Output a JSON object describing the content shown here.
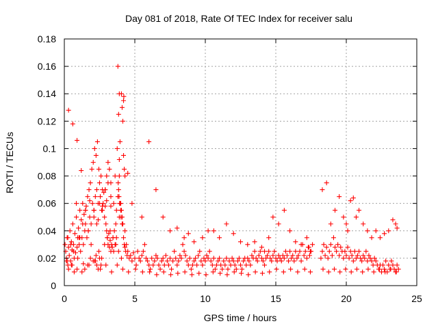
{
  "colors": {
    "marker": "#ff0000",
    "grid": "#a0a0a0",
    "axis": "#000000",
    "background": "#ffffff"
  },
  "chart_data": {
    "type": "scatter",
    "title": "Day 081 of 2018, Rate Of TEC Index for receiver salu",
    "xlabel": "GPS time / hours",
    "ylabel": "ROTI / TECUs",
    "xlim": [
      0,
      25
    ],
    "ylim": [
      0,
      0.18
    ],
    "xticks": [
      0,
      5,
      10,
      15,
      20,
      25
    ],
    "xtick_labels": [
      "0",
      "5",
      "10",
      "15",
      "20",
      "25"
    ],
    "yticks": [
      0,
      0.02,
      0.04,
      0.06,
      0.08,
      0.1,
      0.12,
      0.14,
      0.16,
      0.18
    ],
    "ytick_labels": [
      "0",
      "0.02",
      "0.04",
      "0.06",
      "0.08",
      "0.1",
      "0.12",
      "0.14",
      "0.16",
      "0.18"
    ],
    "grid": true,
    "marker": "+",
    "series": [
      {
        "name": "ROTI",
        "x": [
          0.05,
          0.1,
          0.15,
          0.2,
          0.25,
          0.3,
          0.35,
          0.4,
          0.45,
          0.5,
          0.55,
          0.6,
          0.65,
          0.7,
          0.75,
          0.8,
          0.85,
          0.9,
          0.95,
          1.0,
          1.05,
          1.1,
          1.15,
          1.2,
          1.25,
          1.3,
          1.35,
          1.4,
          1.45,
          1.5,
          1.55,
          1.6,
          1.65,
          1.7,
          1.75,
          1.8,
          1.85,
          1.9,
          1.95,
          2.0,
          2.05,
          2.1,
          2.15,
          2.2,
          2.25,
          2.3,
          2.35,
          2.4,
          2.45,
          2.5,
          2.55,
          2.6,
          2.65,
          2.7,
          2.75,
          2.8,
          2.85,
          2.9,
          2.95,
          3.0,
          3.05,
          3.1,
          3.15,
          3.2,
          3.25,
          3.3,
          3.35,
          3.4,
          3.45,
          3.5,
          3.55,
          3.6,
          3.65,
          3.7,
          3.75,
          3.8,
          3.85,
          3.9,
          3.95,
          4.0,
          4.05,
          4.1,
          4.15,
          4.2,
          4.25,
          4.3,
          4.35,
          4.4,
          4.45,
          4.5,
          4.6,
          4.7,
          4.8,
          4.9,
          5.0,
          5.1,
          5.2,
          5.3,
          5.4,
          5.5,
          5.6,
          5.7,
          5.8,
          5.9,
          6.0,
          6.1,
          6.2,
          6.3,
          6.4,
          6.5,
          6.6,
          6.7,
          6.8,
          6.9,
          7.0,
          7.1,
          7.2,
          7.3,
          7.4,
          7.5,
          7.6,
          7.7,
          7.8,
          7.9,
          8.0,
          8.1,
          8.2,
          8.3,
          8.4,
          8.5,
          8.6,
          8.7,
          8.8,
          8.9,
          9.0,
          9.1,
          9.2,
          9.3,
          9.4,
          9.5,
          9.6,
          9.7,
          9.8,
          9.9,
          10.0,
          10.1,
          10.2,
          10.3,
          10.4,
          10.5,
          10.6,
          10.7,
          10.8,
          10.9,
          11.0,
          11.1,
          11.2,
          11.3,
          11.4,
          11.5,
          11.6,
          11.7,
          11.8,
          11.9,
          12.0,
          12.1,
          12.2,
          12.3,
          12.4,
          12.5,
          12.6,
          12.7,
          12.8,
          12.9,
          13.0,
          13.1,
          13.2,
          13.3,
          13.4,
          13.5,
          13.6,
          13.7,
          13.8,
          13.9,
          14.0,
          14.1,
          14.2,
          14.3,
          14.4,
          14.5,
          14.6,
          14.7,
          14.8,
          14.9,
          15.0,
          15.1,
          15.2,
          15.3,
          15.4,
          15.5,
          15.6,
          15.7,
          15.8,
          15.9,
          16.0,
          16.1,
          16.2,
          16.3,
          16.4,
          16.5,
          16.6,
          16.7,
          16.8,
          16.9,
          17.0,
          17.1,
          17.2,
          17.3,
          17.4,
          17.5,
          17.6,
          18.2,
          18.3,
          18.4,
          18.5,
          18.6,
          18.7,
          18.8,
          18.9,
          19.0,
          19.1,
          19.2,
          19.3,
          19.4,
          19.5,
          19.6,
          19.7,
          19.8,
          19.9,
          20.0,
          20.1,
          20.2,
          20.3,
          20.4,
          20.5,
          20.6,
          20.7,
          20.8,
          20.9,
          21.0,
          21.1,
          21.2,
          21.3,
          21.4,
          21.5,
          21.6,
          21.7,
          21.8,
          21.9,
          22.0,
          22.1,
          22.2,
          22.3,
          22.4,
          22.5,
          22.6,
          22.7,
          22.8,
          22.9,
          23.0,
          23.1,
          23.2,
          23.3,
          23.4,
          23.5,
          23.6,
          23.7,
          0.2,
          0.3,
          0.5,
          0.7,
          0.9,
          1.1,
          1.3,
          1.5,
          1.7,
          1.9,
          2.1,
          2.3,
          2.5,
          2.7,
          2.9,
          3.1,
          3.3,
          3.5,
          3.7,
          3.9,
          4.1,
          4.3,
          0.25,
          0.45,
          0.65,
          0.85,
          1.05,
          1.25,
          1.45,
          1.65,
          1.85,
          2.05,
          2.25,
          2.45,
          2.65,
          2.85,
          3.05,
          3.25,
          3.45,
          3.65,
          3.85,
          4.05,
          2.2,
          2.3,
          2.4,
          2.5,
          2.6,
          2.9,
          3.0,
          3.1,
          3.2,
          3.3,
          3.8,
          3.85,
          3.9,
          3.95,
          4.0,
          4.05,
          4.1,
          4.15,
          4.2,
          4.25,
          4.3,
          3.82,
          3.88,
          3.92,
          4.02,
          4.12,
          4.22,
          0.3,
          0.6,
          0.9,
          1.2,
          1.5,
          1.8,
          2.1,
          2.4,
          2.7,
          3.0,
          3.3,
          3.6,
          3.9,
          4.2,
          4.5,
          4.8,
          5.5,
          6.0,
          6.5,
          7.0,
          7.5,
          8.0,
          8.5,
          8.8,
          9.2,
          9.8,
          10.2,
          10.6,
          11.0,
          11.5,
          12.0,
          12.5,
          13.0,
          13.5,
          14.0,
          14.2,
          14.5,
          14.8,
          15.2,
          15.6,
          16.0,
          16.4,
          16.8,
          17.2,
          17.35,
          17.45,
          18.3,
          18.6,
          18.9,
          19.2,
          19.5,
          19.8,
          20.0,
          20.1,
          20.3,
          20.5,
          20.7,
          20.9,
          21.2,
          21.5,
          21.8,
          22.1,
          22.4,
          22.7,
          23.0,
          23.3,
          23.5,
          23.6,
          0.15,
          0.55,
          0.95,
          1.35,
          1.75,
          2.15,
          2.55,
          2.95,
          3.35,
          3.75,
          4.15,
          4.55,
          5.05,
          5.55,
          6.05,
          6.55,
          7.05,
          7.55,
          8.05,
          8.55,
          9.05,
          9.55,
          10.05,
          10.55,
          11.05,
          11.55,
          12.05,
          12.55,
          13.05,
          13.55,
          14.05,
          14.55,
          15.05,
          15.55,
          16.05,
          16.55,
          17.05,
          17.45,
          18.35,
          18.75,
          19.15,
          19.55,
          19.95,
          20.35,
          20.75,
          21.15,
          21.55,
          21.95,
          22.35,
          22.75,
          23.15,
          23.55
        ],
        "y": [
          0.03,
          0.025,
          0.02,
          0.035,
          0.015,
          0.028,
          0.022,
          0.04,
          0.018,
          0.032,
          0.026,
          0.045,
          0.03,
          0.02,
          0.038,
          0.024,
          0.05,
          0.028,
          0.035,
          0.042,
          0.03,
          0.055,
          0.025,
          0.048,
          0.035,
          0.06,
          0.03,
          0.052,
          0.04,
          0.045,
          0.058,
          0.035,
          0.065,
          0.04,
          0.07,
          0.05,
          0.075,
          0.045,
          0.085,
          0.06,
          0.09,
          0.055,
          0.1,
          0.065,
          0.095,
          0.07,
          0.105,
          0.06,
          0.085,
          0.075,
          0.065,
          0.08,
          0.055,
          0.07,
          0.06,
          0.068,
          0.05,
          0.058,
          0.045,
          0.04,
          0.035,
          0.03,
          0.038,
          0.028,
          0.033,
          0.025,
          0.03,
          0.028,
          0.035,
          0.025,
          0.04,
          0.03,
          0.045,
          0.035,
          0.1,
          0.16,
          0.125,
          0.14,
          0.105,
          0.06,
          0.055,
          0.05,
          0.045,
          0.035,
          0.03,
          0.028,
          0.025,
          0.03,
          0.022,
          0.025,
          0.02,
          0.022,
          0.018,
          0.024,
          0.02,
          0.015,
          0.025,
          0.02,
          0.018,
          0.022,
          0.025,
          0.03,
          0.02,
          0.018,
          0.015,
          0.012,
          0.02,
          0.015,
          0.018,
          0.022,
          0.02,
          0.015,
          0.012,
          0.018,
          0.02,
          0.015,
          0.022,
          0.018,
          0.015,
          0.02,
          0.012,
          0.018,
          0.025,
          0.02,
          0.015,
          0.018,
          0.022,
          0.02,
          0.03,
          0.025,
          0.022,
          0.018,
          0.015,
          0.02,
          0.012,
          0.015,
          0.018,
          0.02,
          0.015,
          0.022,
          0.025,
          0.018,
          0.015,
          0.02,
          0.018,
          0.022,
          0.02,
          0.025,
          0.018,
          0.015,
          0.02,
          0.012,
          0.015,
          0.018,
          0.02,
          0.015,
          0.012,
          0.018,
          0.015,
          0.02,
          0.012,
          0.018,
          0.015,
          0.02,
          0.018,
          0.015,
          0.012,
          0.018,
          0.02,
          0.015,
          0.012,
          0.018,
          0.02,
          0.015,
          0.02,
          0.018,
          0.015,
          0.022,
          0.02,
          0.025,
          0.02,
          0.018,
          0.022,
          0.025,
          0.02,
          0.018,
          0.015,
          0.02,
          0.022,
          0.025,
          0.02,
          0.018,
          0.022,
          0.025,
          0.02,
          0.018,
          0.022,
          0.02,
          0.018,
          0.022,
          0.02,
          0.025,
          0.022,
          0.018,
          0.025,
          0.02,
          0.022,
          0.018,
          0.025,
          0.02,
          0.022,
          0.025,
          0.018,
          0.03,
          0.022,
          0.025,
          0.02,
          0.028,
          0.022,
          0.025,
          0.03,
          0.02,
          0.025,
          0.03,
          0.022,
          0.028,
          0.02,
          0.025,
          0.03,
          0.022,
          0.035,
          0.028,
          0.025,
          0.03,
          0.022,
          0.028,
          0.025,
          0.02,
          0.025,
          0.022,
          0.028,
          0.02,
          0.025,
          0.022,
          0.018,
          0.025,
          0.02,
          0.022,
          0.025,
          0.02,
          0.018,
          0.022,
          0.02,
          0.025,
          0.018,
          0.022,
          0.02,
          0.018,
          0.015,
          0.02,
          0.018,
          0.015,
          0.012,
          0.015,
          0.01,
          0.015,
          0.012,
          0.018,
          0.01,
          0.015,
          0.012,
          0.018,
          0.015,
          0.012,
          0.01,
          0.015,
          0.012,
          0.018,
          0.012,
          0.015,
          0.01,
          0.012,
          0.035,
          0.045,
          0.055,
          0.04,
          0.03,
          0.05,
          0.045,
          0.06,
          0.055,
          0.07,
          0.075,
          0.065,
          0.06,
          0.055,
          0.05,
          0.045,
          0.04,
          0.035,
          0.03,
          0.025,
          0.06,
          0.035,
          0.01,
          0.012,
          0.015,
          0.02,
          0.018,
          0.022,
          0.025,
          0.02,
          0.03,
          0.035,
          0.04,
          0.035,
          0.03,
          0.025,
          0.02,
          0.018,
          0.015,
          0.012,
          0.02,
          0.015,
          0.07,
          0.08,
          0.09,
          0.085,
          0.075,
          0.065,
          0.07,
          0.08,
          0.06,
          0.055,
          0.14,
          0.13,
          0.12,
          0.135,
          0.085,
          0.08,
          0.075,
          0.065,
          0.06,
          0.05,
          0.045,
          0.138,
          0.128,
          0.118,
          0.106,
          0.084,
          0.055,
          0.062,
          0.055,
          0.048,
          0.058,
          0.062,
          0.058,
          0.08,
          0.092,
          0.095,
          0.082,
          0.06,
          0.05,
          0.105,
          0.07,
          0.05,
          0.04,
          0.042,
          0.035,
          0.038,
          0.032,
          0.035,
          0.04,
          0.04,
          0.035,
          0.045,
          0.038,
          0.032,
          0.03,
          0.032,
          0.028,
          0.025,
          0.035,
          0.05,
          0.045,
          0.055,
          0.04,
          0.032,
          0.03,
          0.035,
          0.028,
          0.025,
          0.07,
          0.075,
          0.045,
          0.055,
          0.065,
          0.05,
          0.045,
          0.04,
          0.062,
          0.064,
          0.05,
          0.055,
          0.045,
          0.04,
          0.035,
          0.04,
          0.035,
          0.038,
          0.04,
          0.048,
          0.045,
          0.042,
          0.018,
          0.015,
          0.02,
          0.016,
          0.015,
          0.018,
          0.012,
          0.015,
          0.01,
          0.015,
          0.012,
          0.01,
          0.012,
          0.01,
          0.01,
          0.008,
          0.01,
          0.008,
          0.009,
          0.01,
          0.008,
          0.009,
          0.008,
          0.01,
          0.009,
          0.008,
          0.01,
          0.009,
          0.008,
          0.01,
          0.009,
          0.01,
          0.012,
          0.01,
          0.012,
          0.01,
          0.012,
          0.01,
          0.012,
          0.01,
          0.012,
          0.01,
          0.012,
          0.01,
          0.012,
          0.01,
          0.012,
          0.01,
          0.012,
          0.01,
          0.012,
          0.01
        ]
      }
    ]
  }
}
